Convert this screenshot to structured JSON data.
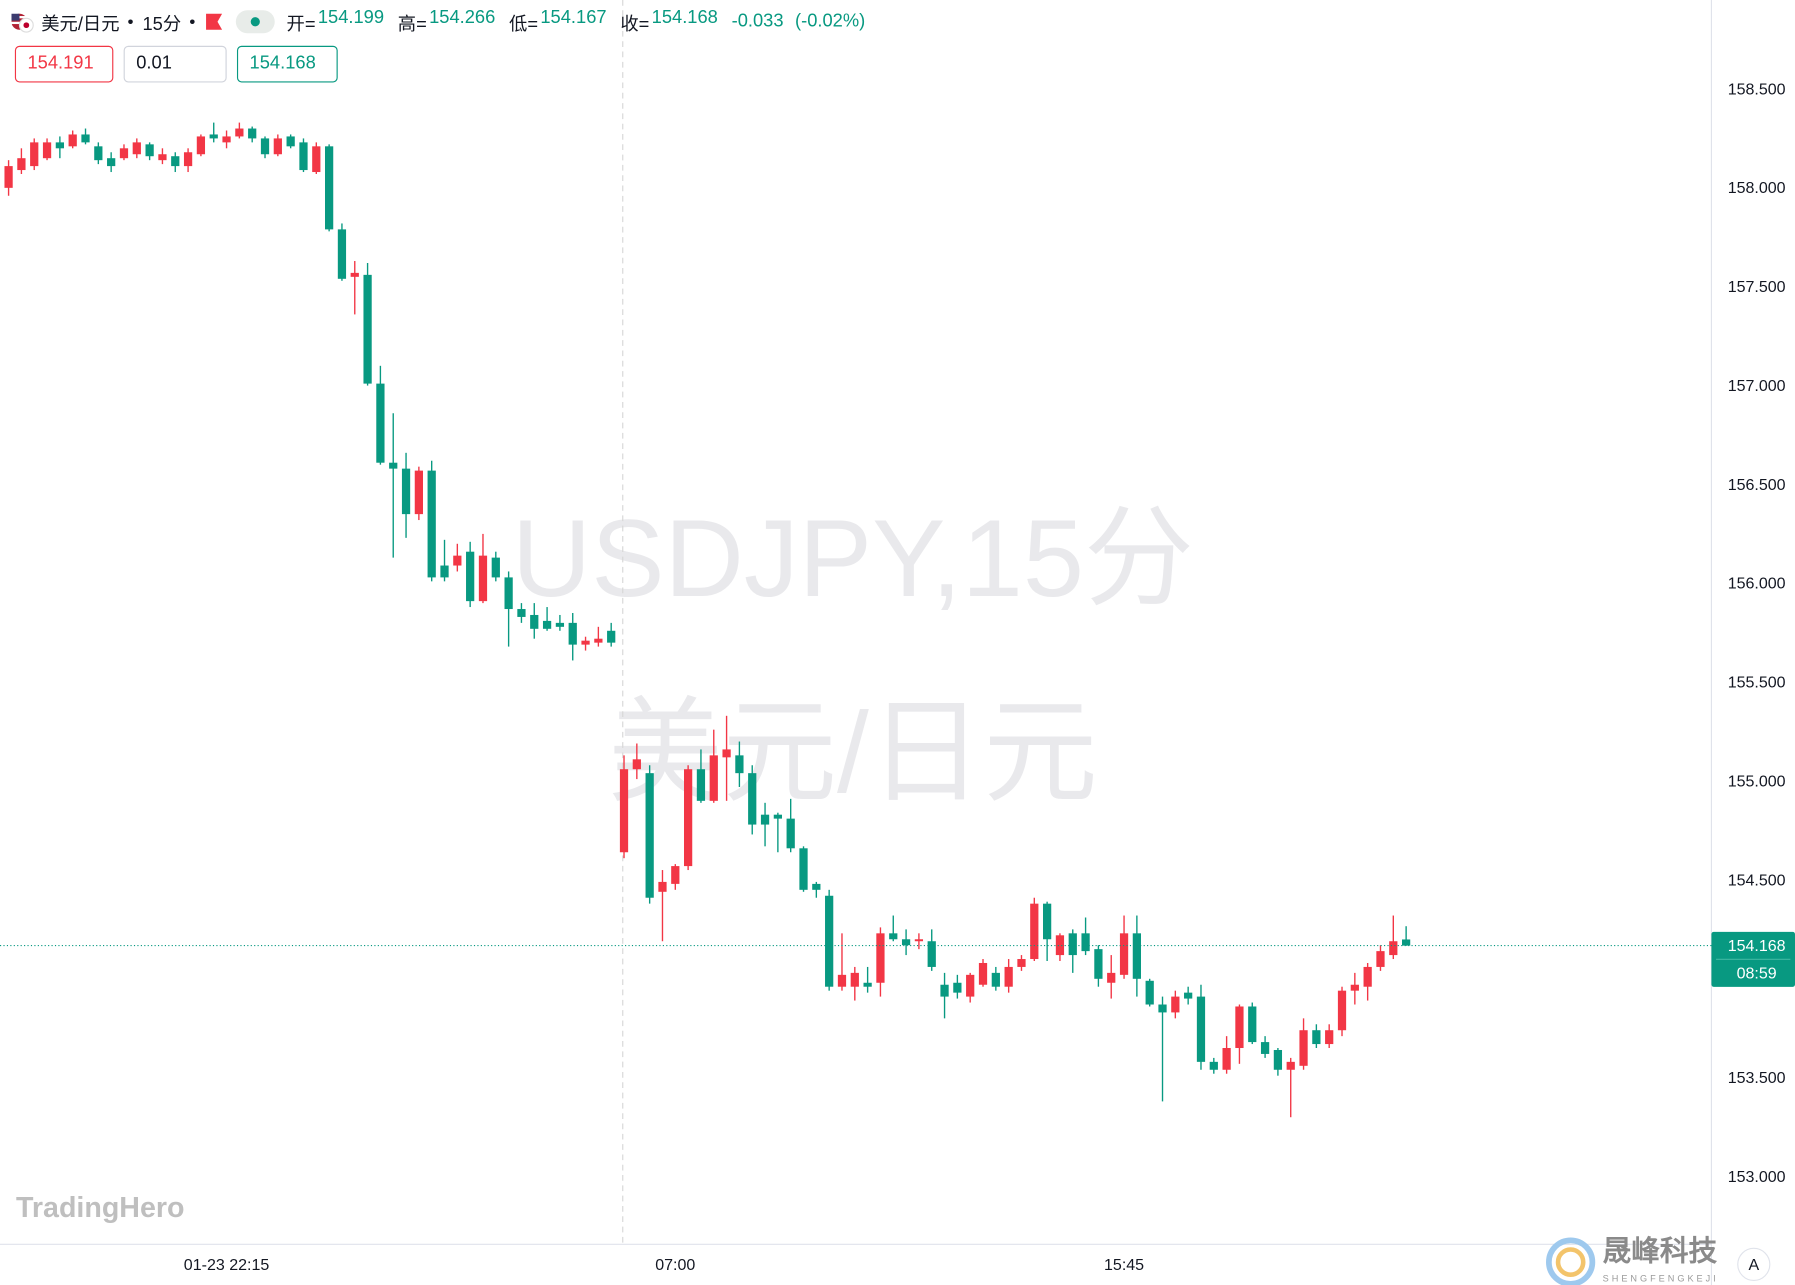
{
  "header": {
    "symbol": "美元/日元",
    "interval": "15分",
    "labels": [
      "开=",
      "高=",
      "低=",
      "收="
    ],
    "change": "-0.033",
    "change_pct": "(-0.02%)",
    "sell": "154.191",
    "spread": "0.01",
    "buy": "154.168",
    "countdown": "08:59"
  },
  "watermark": {
    "line1": "USDJPY,15分",
    "line2": "美元/日元"
  },
  "logo": "TradingHero",
  "brand": {
    "name": "晟峰科技",
    "sub": "SHENGFENGKEJI"
  },
  "button": "A",
  "chart_data": {
    "type": "candlestick",
    "up_color": "#f23645",
    "down_color": "#089981",
    "grid": false,
    "ylim": [
      152.66,
      158.95
    ],
    "yticks": [
      {
        "value": 153,
        "label": "153.000"
      },
      {
        "value": 153.5,
        "label": "153.500"
      },
      {
        "value": 154,
        "label": "154.000"
      },
      {
        "value": 154.5,
        "label": "154.500"
      },
      {
        "value": 155,
        "label": "155.000"
      },
      {
        "value": 155.5,
        "label": "155.500"
      },
      {
        "value": 156,
        "label": "156.000"
      },
      {
        "value": 156.5,
        "label": "156.500"
      },
      {
        "value": 157,
        "label": "157.000"
      },
      {
        "value": 157.5,
        "label": "157.500"
      },
      {
        "value": 158,
        "label": "158.000"
      },
      {
        "value": 158.5,
        "label": "158.500"
      }
    ],
    "categories": [
      null,
      null,
      null,
      null,
      null,
      null,
      null,
      null,
      null,
      null,
      null,
      null,
      null,
      null,
      null,
      null,
      null,
      "01-23 22:15",
      null,
      null,
      null,
      null,
      null,
      null,
      null,
      null,
      null,
      null,
      null,
      null,
      null,
      null,
      null,
      null,
      null,
      null,
      null,
      null,
      null,
      null,
      null,
      null,
      null,
      null,
      null,
      null,
      null,
      null,
      null,
      null,
      null,
      null,
      "07:00",
      null,
      null,
      null,
      null,
      null,
      null,
      null,
      null,
      null,
      null,
      null,
      null,
      null,
      null,
      null,
      null,
      null,
      null,
      null,
      null,
      null,
      null,
      null,
      null,
      null,
      null,
      null,
      null,
      null,
      null,
      null,
      null,
      null,
      null,
      "15:45",
      null,
      null,
      null,
      null,
      null,
      null,
      null,
      null,
      null,
      null,
      null,
      null,
      null,
      null,
      null,
      null,
      null,
      null,
      null,
      null,
      null,
      null
    ],
    "open": [
      158.0,
      158.09,
      158.11,
      158.15,
      158.23,
      158.21,
      158.27,
      158.21,
      158.15,
      158.15,
      158.17,
      158.22,
      158.14,
      158.16,
      158.11,
      158.17,
      158.27,
      158.23,
      158.26,
      158.3,
      158.25,
      158.17,
      158.26,
      158.23,
      158.08,
      158.21,
      157.79,
      157.55,
      157.56,
      157.01,
      156.61,
      156.58,
      156.35,
      156.57,
      156.09,
      156.09,
      156.16,
      155.91,
      156.13,
      156.03,
      155.87,
      155.84,
      155.81,
      155.8,
      155.8,
      155.69,
      155.7,
      155.76,
      154.64,
      155.06,
      155.04,
      154.44,
      154.48,
      154.57,
      155.06,
      154.9,
      155.12,
      155.13,
      155.04,
      154.83,
      154.83,
      154.81,
      154.66,
      154.48,
      154.42,
      153.96,
      153.96,
      153.98,
      153.98,
      154.23,
      154.2,
      154.19,
      154.19,
      153.97,
      153.98,
      153.91,
      153.97,
      154.03,
      153.96,
      154.06,
      154.1,
      154.38,
      154.12,
      154.23,
      154.23,
      154.15,
      153.98,
      154.02,
      154.23,
      153.99,
      153.87,
      153.83,
      153.93,
      153.91,
      153.58,
      153.54,
      153.65,
      153.86,
      153.68,
      153.64,
      153.54,
      153.56,
      153.74,
      153.67,
      153.74,
      153.94,
      153.96,
      154.06,
      154.12,
      154.199
    ],
    "high": [
      158.14,
      158.2,
      158.25,
      158.25,
      158.26,
      158.29,
      158.3,
      158.23,
      158.18,
      158.22,
      158.25,
      158.23,
      158.2,
      158.18,
      158.2,
      158.27,
      158.33,
      158.29,
      158.33,
      158.31,
      158.26,
      158.27,
      158.27,
      158.25,
      158.23,
      158.22,
      157.82,
      157.63,
      157.62,
      157.1,
      156.86,
      156.66,
      156.59,
      156.62,
      156.22,
      156.2,
      156.21,
      156.25,
      156.16,
      156.06,
      155.9,
      155.9,
      155.88,
      155.84,
      155.85,
      155.73,
      155.78,
      155.8,
      155.13,
      155.19,
      155.08,
      154.55,
      154.58,
      155.08,
      155.16,
      155.26,
      155.33,
      155.2,
      155.08,
      154.89,
      154.84,
      154.91,
      154.67,
      154.49,
      154.45,
      154.23,
      154.06,
      154.06,
      154.26,
      154.32,
      154.25,
      154.23,
      154.25,
      154.03,
      154.02,
      154.03,
      154.1,
      154.06,
      154.1,
      154.12,
      154.41,
      154.39,
      154.23,
      154.25,
      154.31,
      154.17,
      154.12,
      154.32,
      154.32,
      154.0,
      153.91,
      153.94,
      153.96,
      153.97,
      153.6,
      153.71,
      153.87,
      153.88,
      153.71,
      153.65,
      153.6,
      153.8,
      153.77,
      153.77,
      153.96,
      154.03,
      154.08,
      154.17,
      154.32,
      154.266
    ],
    "low": [
      157.96,
      158.07,
      158.09,
      158.14,
      158.15,
      158.2,
      158.22,
      158.12,
      158.08,
      158.14,
      158.15,
      158.14,
      158.12,
      158.08,
      158.08,
      158.16,
      158.23,
      158.2,
      158.25,
      158.23,
      158.15,
      158.16,
      158.2,
      158.08,
      158.07,
      157.78,
      157.53,
      157.36,
      157.0,
      156.6,
      156.13,
      156.23,
      156.32,
      156.01,
      156.01,
      156.06,
      155.88,
      155.9,
      156.01,
      155.68,
      155.8,
      155.72,
      155.76,
      155.76,
      155.61,
      155.66,
      155.68,
      155.68,
      154.61,
      155.01,
      154.38,
      154.19,
      154.45,
      154.55,
      154.89,
      154.89,
      154.9,
      154.97,
      154.73,
      154.67,
      154.64,
      154.64,
      154.44,
      154.41,
      153.94,
      153.94,
      153.89,
      153.93,
      153.91,
      154.19,
      154.12,
      154.15,
      154.04,
      153.8,
      153.9,
      153.88,
      153.96,
      153.94,
      153.93,
      154.04,
      154.09,
      154.09,
      154.09,
      154.03,
      154.12,
      153.96,
      153.9,
      154.0,
      153.91,
      153.86,
      153.38,
      153.8,
      153.87,
      153.54,
      153.52,
      153.52,
      153.57,
      153.67,
      153.6,
      153.51,
      153.3,
      153.54,
      153.65,
      153.65,
      153.71,
      153.87,
      153.89,
      154.04,
      154.1,
      154.167
    ],
    "close": [
      158.11,
      158.15,
      158.23,
      158.23,
      158.2,
      158.27,
      158.23,
      158.14,
      158.11,
      158.2,
      158.23,
      158.16,
      158.17,
      158.11,
      158.18,
      158.26,
      158.25,
      158.26,
      158.3,
      158.25,
      158.17,
      158.25,
      158.21,
      158.09,
      158.21,
      157.79,
      157.54,
      157.57,
      157.01,
      156.61,
      156.58,
      156.35,
      156.57,
      156.03,
      156.03,
      156.14,
      155.91,
      156.14,
      156.03,
      155.87,
      155.83,
      155.77,
      155.77,
      155.78,
      155.69,
      155.71,
      155.72,
      155.7,
      155.06,
      155.11,
      154.41,
      154.49,
      154.57,
      155.06,
      154.9,
      155.13,
      155.16,
      155.04,
      154.78,
      154.78,
      154.81,
      154.66,
      154.45,
      154.45,
      153.96,
      154.02,
      154.03,
      153.96,
      154.23,
      154.2,
      154.17,
      154.2,
      154.06,
      153.91,
      153.93,
      154.02,
      154.08,
      153.96,
      154.06,
      154.1,
      154.38,
      154.2,
      154.22,
      154.12,
      154.14,
      154.0,
      154.03,
      154.23,
      154.0,
      153.87,
      153.83,
      153.91,
      153.9,
      153.58,
      153.54,
      153.65,
      153.86,
      153.68,
      153.62,
      153.54,
      153.58,
      153.74,
      153.67,
      153.74,
      153.94,
      153.97,
      154.06,
      154.14,
      154.19,
      154.168
    ]
  }
}
